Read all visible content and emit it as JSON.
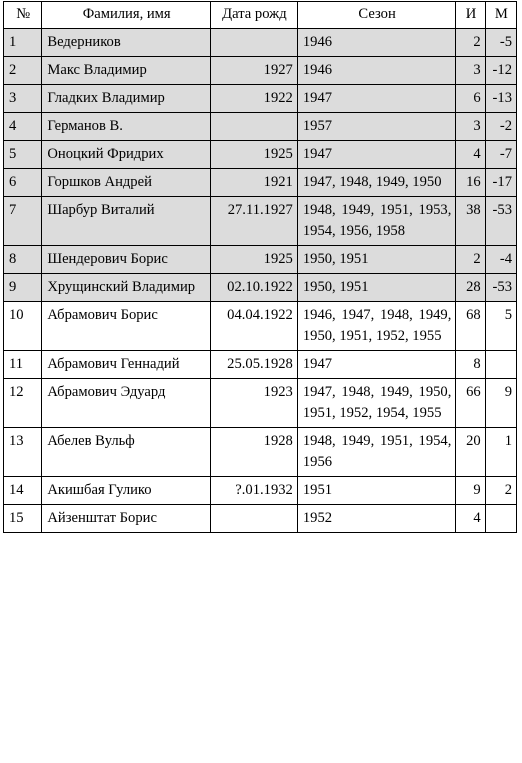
{
  "header": {
    "num": "№",
    "name": "Фамилия, имя",
    "born": "Дата рожд",
    "season": "Сезон",
    "games": "И",
    "goals": "М"
  },
  "rows": [
    {
      "num": "1",
      "name": "Ведерников",
      "born": "",
      "season": "1946",
      "games": "2",
      "goals": "-5",
      "shaded": true
    },
    {
      "num": "2",
      "name": "Макс Владимир",
      "born": "1927",
      "season": "1946",
      "games": "3",
      "goals": "-12",
      "shaded": true
    },
    {
      "num": "3",
      "name": "Гладких Владимир",
      "born": "1922",
      "season": "1947",
      "games": "6",
      "goals": "-13",
      "shaded": true
    },
    {
      "num": "4",
      "name": "Германов В.",
      "born": "",
      "season": "1957",
      "games": "3",
      "goals": "-2",
      "shaded": true
    },
    {
      "num": "5",
      "name": "Оноцкий Фридрих",
      "born": "1925",
      "season": "1947",
      "games": "4",
      "goals": "-7",
      "shaded": true
    },
    {
      "num": "6",
      "name": "Горшков Андрей",
      "born": "1921",
      "season": "1947, 1948, 1949, 1950",
      "games": "16",
      "goals": "-17",
      "shaded": true
    },
    {
      "num": "7",
      "name": "Шарбур Виталий",
      "born": "27.11.1927",
      "season": "1948, 1949, 1951, 1953, 1954, 1956, 1958",
      "games": "38",
      "goals": "-53",
      "shaded": true
    },
    {
      "num": "8",
      "name": "Шендерович Борис",
      "born": "1925",
      "season": "1950, 1951",
      "games": "2",
      "goals": "-4",
      "shaded": true
    },
    {
      "num": "9",
      "name": "Хрущинский Владимир",
      "born": "02.10.1922",
      "season": "1950, 1951",
      "games": "28",
      "goals": "-53",
      "shaded": true
    },
    {
      "num": "10",
      "name": "Абрамович Борис",
      "born": "04.04.1922",
      "season": "1946, 1947, 1948, 1949, 1950, 1951, 1952, 1955",
      "games": "68",
      "goals": "5",
      "shaded": false
    },
    {
      "num": "11",
      "name": "Абрамович Геннадий",
      "born": "25.05.1928",
      "season": "1947",
      "games": "8",
      "goals": "",
      "shaded": false
    },
    {
      "num": "12",
      "name": "Абрамович Эдуард",
      "born": "1923",
      "season": "1947, 1948, 1949, 1950, 1951, 1952, 1954, 1955",
      "games": "66",
      "goals": "9",
      "shaded": false
    },
    {
      "num": "13",
      "name": "Абелев Вульф",
      "born": "1928",
      "season": "1948, 1949, 1951, 1954, 1956",
      "games": "20",
      "goals": "1",
      "shaded": false
    },
    {
      "num": "14",
      "name": "Акишбая Гулико",
      "born": "?.01.1932",
      "season": "1951",
      "games": "9",
      "goals": "2",
      "shaded": false
    },
    {
      "num": "15",
      "name": "Айзенштат Борис",
      "born": "",
      "season": "1952",
      "games": "4",
      "goals": "",
      "shaded": false
    }
  ],
  "colors": {
    "shaded_row": "#dcdcdc",
    "border": "#000000"
  }
}
